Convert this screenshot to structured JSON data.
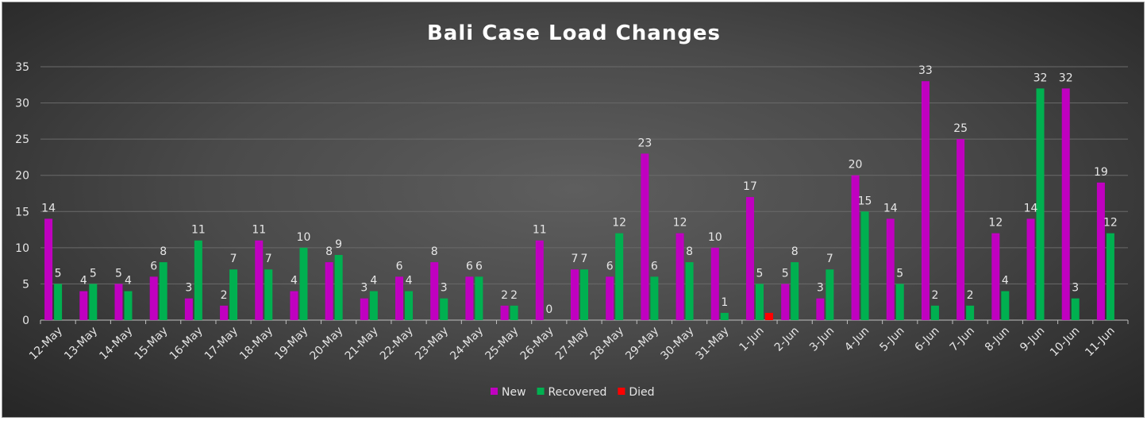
{
  "chart_data": {
    "type": "bar",
    "title": "Bali Case Load Changes",
    "categories": [
      "12-May",
      "13-May",
      "14-May",
      "15-May",
      "16-May",
      "17-May",
      "18-May",
      "19-May",
      "20-May",
      "21-May",
      "22-May",
      "23-May",
      "24-May",
      "25-May",
      "26-May",
      "27-May",
      "28-May",
      "29-May",
      "30-May",
      "31-May",
      "1-Jun",
      "2-Jun",
      "3-Jun",
      "4-Jun",
      "5-Jun",
      "6-Jun",
      "7-Jun",
      "8-Jun",
      "9-Jun",
      "10-Jun",
      "11-Jun"
    ],
    "series": [
      {
        "name": "New",
        "color": "#c000c0",
        "values": [
          14,
          4,
          5,
          6,
          3,
          2,
          11,
          4,
          8,
          3,
          6,
          8,
          6,
          2,
          11,
          7,
          6,
          23,
          12,
          10,
          17,
          5,
          3,
          20,
          14,
          33,
          25,
          12,
          14,
          32,
          19
        ]
      },
      {
        "name": "Recovered",
        "color": "#00b050",
        "values": [
          5,
          5,
          4,
          8,
          11,
          7,
          7,
          10,
          9,
          4,
          4,
          3,
          6,
          2,
          0,
          7,
          12,
          6,
          8,
          1,
          5,
          8,
          7,
          15,
          5,
          2,
          2,
          4,
          32,
          3,
          12
        ]
      },
      {
        "name": "Died",
        "color": "#ff0000",
        "values": [
          0,
          0,
          0,
          0,
          0,
          0,
          0,
          0,
          0,
          0,
          0,
          0,
          0,
          0,
          0,
          0,
          0,
          0,
          0,
          0,
          1,
          0,
          0,
          0,
          0,
          0,
          0,
          0,
          0,
          0,
          0
        ]
      }
    ],
    "ylim": [
      0,
      35
    ],
    "yticks": [
      0,
      5,
      10,
      15,
      20,
      25,
      30,
      35
    ],
    "grid": true,
    "legend_position": "bottom"
  }
}
